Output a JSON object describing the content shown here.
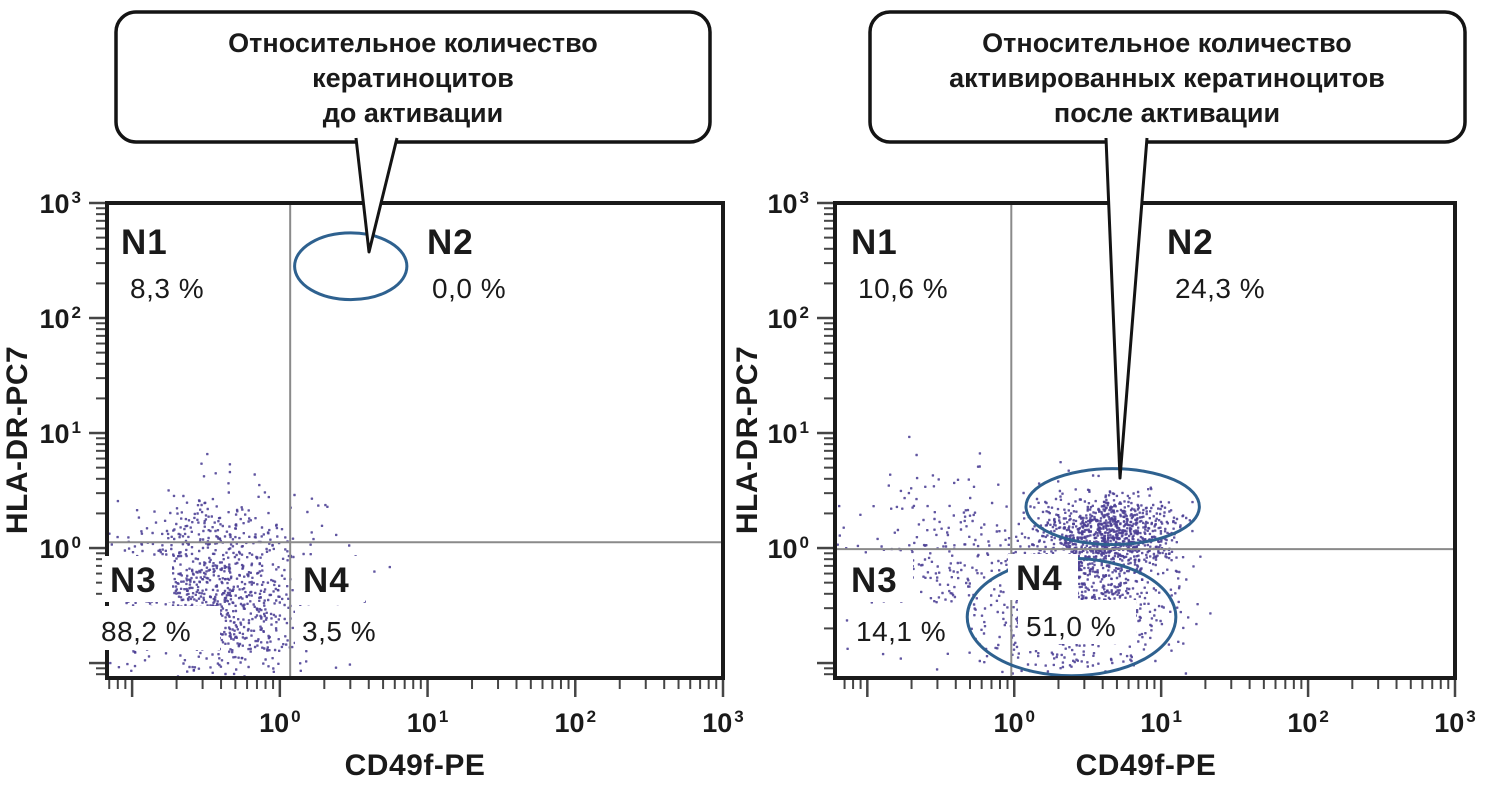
{
  "figure": {
    "background": "#ffffff",
    "callouts": [
      {
        "lines": [
          "Относительное количество",
          "кератиноцитов",
          "до активации"
        ]
      },
      {
        "lines": [
          "Относительное количество",
          "активированных кератиноцитов",
          "после активации"
        ]
      }
    ]
  },
  "colors": {
    "ink": "#1a1a1a",
    "dot": "#4b3f94",
    "gate_stroke": "#2e618f",
    "quadrant_line": "#8a8a8a",
    "tick": "#454545",
    "label_bg": "#ffffff"
  },
  "chart_data": [
    {
      "id": "before_activation",
      "type": "scatter",
      "scale": "log10",
      "xlabel": "CD49f-PE",
      "ylabel": "HLA-DR-PC7",
      "x_log_range": [
        -1.17,
        3
      ],
      "y_log_range": [
        -1.13,
        3
      ],
      "decade_exponents": [
        0,
        1,
        2,
        3
      ],
      "quadrant_divider_log10": {
        "x": 0.07,
        "y": 0.05
      },
      "quadrants": [
        {
          "name": "N1",
          "value": "8,3 %"
        },
        {
          "name": "N2",
          "value": "0,0 %"
        },
        {
          "name": "N3",
          "value": "88,2 %"
        },
        {
          "name": "N4",
          "value": "3,5 %"
        }
      ],
      "gate_ellipses_log10": [
        {
          "cx": 0.48,
          "cy": 2.45,
          "rx": 0.38,
          "ry": 0.29
        }
      ],
      "scatter_clusters_log10": [
        {
          "cx": -0.45,
          "cy": -0.4,
          "sx": 0.33,
          "sy": 0.4,
          "n": 1050
        },
        {
          "cx": -0.5,
          "cy": 0.12,
          "sx": 0.42,
          "sy": 0.16,
          "n": 70
        },
        {
          "cx": 0.22,
          "cy": -0.55,
          "sx": 0.22,
          "sy": 0.3,
          "n": 45
        }
      ],
      "seed": 7
    },
    {
      "id": "after_activation",
      "type": "scatter",
      "scale": "log10",
      "xlabel": "CD49f-PE",
      "ylabel": "HLA-DR-PC7",
      "x_log_range": [
        -1.22,
        3
      ],
      "y_log_range": [
        -1.13,
        3
      ],
      "decade_exponents": [
        0,
        1,
        2,
        3
      ],
      "quadrant_divider_log10": {
        "x": -0.02,
        "y": -0.01
      },
      "quadrants": [
        {
          "name": "N1",
          "value": "10,6 %"
        },
        {
          "name": "N2",
          "value": "24,3 %"
        },
        {
          "name": "N3",
          "value": "14,1 %"
        },
        {
          "name": "N4",
          "value": "51,0 %"
        }
      ],
      "gate_ellipses_log10": [
        {
          "cx": 0.67,
          "cy": 0.36,
          "rx": 0.59,
          "ry": 0.33
        },
        {
          "cx": 0.39,
          "cy": -0.6,
          "rx": 0.71,
          "ry": 0.51
        }
      ],
      "scatter_clusters_log10": [
        {
          "cx": 0.65,
          "cy": 0.12,
          "sx": 0.22,
          "sy": 0.16,
          "n": 850
        },
        {
          "cx": 0.45,
          "cy": -0.42,
          "sx": 0.28,
          "sy": 0.32,
          "n": 900
        },
        {
          "cx": -0.5,
          "cy": -0.3,
          "sx": 0.38,
          "sy": 0.35,
          "n": 230
        },
        {
          "cx": -0.45,
          "cy": 0.35,
          "sx": 0.45,
          "sy": 0.25,
          "n": 70
        }
      ],
      "seed": 13
    }
  ]
}
